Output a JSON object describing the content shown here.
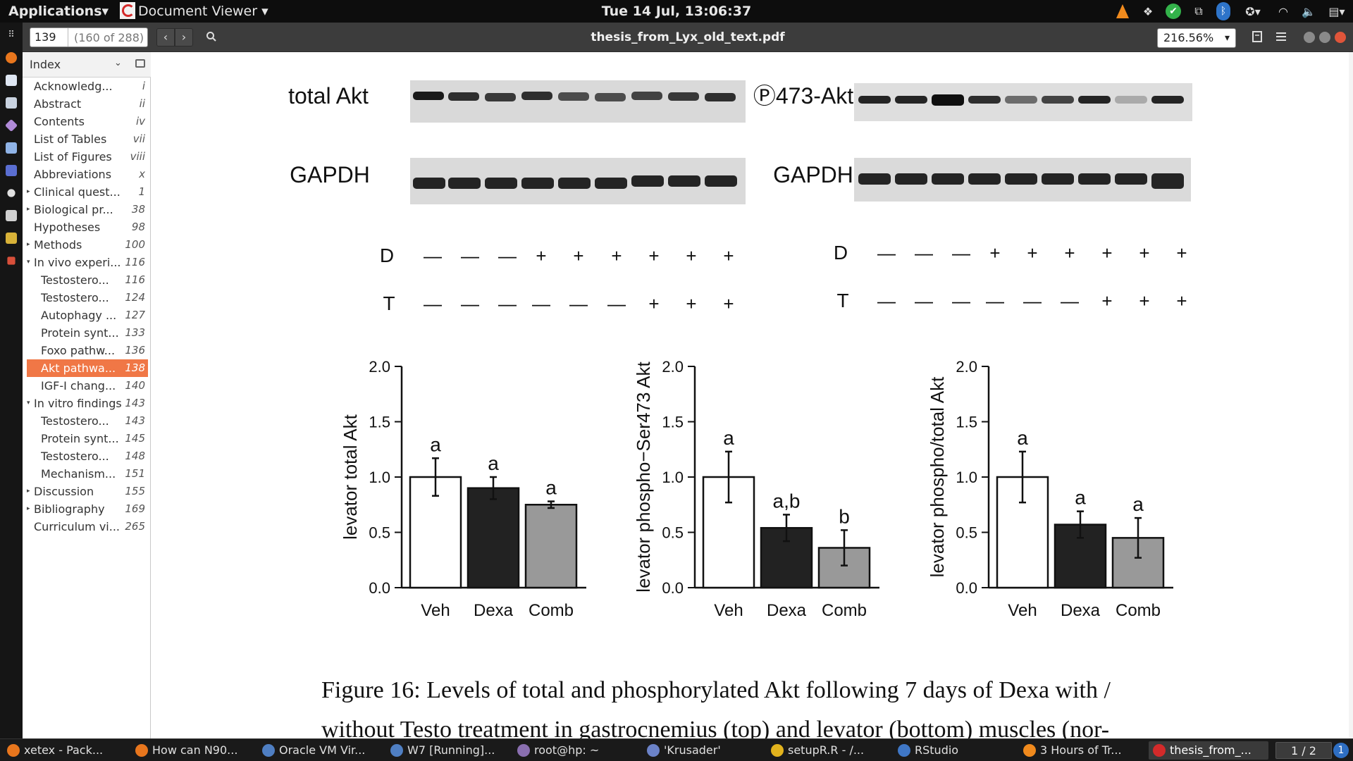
{
  "top_panel": {
    "applications": "Applications▾",
    "app_name": "Document Viewer ▾",
    "clock": "Tue 14 Jul, 13:06:37",
    "tray_icons": [
      "vlc-cone-icon",
      "dropbox-icon",
      "check-icon",
      "network-manager-icon",
      "bluetooth-icon",
      "accessibility-icon",
      "wifi-icon",
      "volume-icon",
      "clipboard-icon"
    ]
  },
  "launcher": {
    "icons": [
      "apps-grid-icon",
      "firefox-icon",
      "document-icon",
      "text-editor-icon",
      "diamond-icon",
      "package-icon",
      "calculator-icon",
      "terminal-icon",
      "text-icon",
      "gimp-icon",
      "tools-icon"
    ]
  },
  "toolbar": {
    "page_number": "139",
    "page_of": "(160 of 288)",
    "title": "thesis_from_Lyx_old_text.pdf",
    "zoom": "216.56%",
    "prev_icon": "‹",
    "next_icon": "›"
  },
  "sidebar": {
    "header": "Index",
    "items": [
      {
        "label": "Acknowledg...",
        "page": "i",
        "level": 1,
        "expander": ""
      },
      {
        "label": "Abstract",
        "page": "ii",
        "level": 1,
        "expander": ""
      },
      {
        "label": "Contents",
        "page": "iv",
        "level": 1,
        "expander": ""
      },
      {
        "label": "List of Tables",
        "page": "vii",
        "level": 1,
        "expander": ""
      },
      {
        "label": "List of Figures",
        "page": "viii",
        "level": 1,
        "expander": ""
      },
      {
        "label": "Abbreviations",
        "page": "x",
        "level": 1,
        "expander": ""
      },
      {
        "label": "Clinical quest...",
        "page": "1",
        "level": 1,
        "expander": "▸"
      },
      {
        "label": "Biological pr...",
        "page": "38",
        "level": 1,
        "expander": "▸"
      },
      {
        "label": "Hypotheses",
        "page": "98",
        "level": 1,
        "expander": ""
      },
      {
        "label": "Methods",
        "page": "100",
        "level": 1,
        "expander": "▸"
      },
      {
        "label": "In vivo experi...",
        "page": "116",
        "level": 1,
        "expander": "▾"
      },
      {
        "label": "Testostero...",
        "page": "116",
        "level": 2,
        "expander": ""
      },
      {
        "label": "Testostero...",
        "page": "124",
        "level": 2,
        "expander": ""
      },
      {
        "label": "Autophagy ...",
        "page": "127",
        "level": 2,
        "expander": ""
      },
      {
        "label": "Protein synt...",
        "page": "133",
        "level": 2,
        "expander": ""
      },
      {
        "label": "Foxo pathw...",
        "page": "136",
        "level": 2,
        "expander": ""
      },
      {
        "label": "Akt pathwa...",
        "page": "138",
        "level": 2,
        "expander": "",
        "selected": true
      },
      {
        "label": "IGF-I chang...",
        "page": "140",
        "level": 2,
        "expander": ""
      },
      {
        "label": "In vitro findings",
        "page": "143",
        "level": 1,
        "expander": "▾"
      },
      {
        "label": "Testostero...",
        "page": "143",
        "level": 2,
        "expander": ""
      },
      {
        "label": "Protein synt...",
        "page": "145",
        "level": 2,
        "expander": ""
      },
      {
        "label": "Testostero...",
        "page": "148",
        "level": 2,
        "expander": ""
      },
      {
        "label": "Mechanism...",
        "page": "151",
        "level": 2,
        "expander": ""
      },
      {
        "label": "Discussion",
        "page": "155",
        "level": 1,
        "expander": "▸"
      },
      {
        "label": "Bibliography",
        "page": "169",
        "level": 1,
        "expander": "▸"
      },
      {
        "label": "Curriculum vi...",
        "page": "265",
        "level": 1,
        "expander": ""
      }
    ]
  },
  "document": {
    "blot_left": {
      "row1": "total Akt",
      "row2": "GAPDH"
    },
    "blot_right": {
      "row1": "Ⓟ473-Akt",
      "row2": "GAPDH"
    },
    "treatment_left": {
      "d_label": "D",
      "t_label": "T",
      "d_signs": [
        "—",
        "—",
        "—",
        "+",
        "+",
        "+",
        "+",
        "+",
        "+"
      ],
      "t_signs": [
        "—",
        "—",
        "—",
        "—",
        "—",
        "—",
        "+",
        "+",
        "+"
      ]
    },
    "treatment_right": {
      "d_label": "D",
      "t_label": "T",
      "d_signs": [
        "—",
        "—",
        "—",
        "+",
        "+",
        "+",
        "+",
        "+",
        "+"
      ],
      "t_signs": [
        "—",
        "—",
        "—",
        "—",
        "—",
        "—",
        "+",
        "+",
        "+"
      ]
    },
    "caption_line1": "Figure 16:  Levels of total and phosphorylated Akt following 7 days of Dexa with /",
    "caption_line2": "without Testo treatment in gastrocnemius (top) and levator (bottom) muscles (nor-"
  },
  "chart_data": [
    {
      "type": "bar",
      "categories": [
        "Veh",
        "Dexa",
        "Comb"
      ],
      "values": [
        1.0,
        0.9,
        0.75
      ],
      "errors": [
        0.17,
        0.1,
        0.03
      ],
      "labels": [
        "a",
        "a",
        "a"
      ],
      "ylabel": "levator total Akt",
      "ylim": [
        0,
        2.0
      ],
      "yticks": [
        "0.0",
        "0.5",
        "1.0",
        "1.5",
        "2.0"
      ],
      "colors": [
        "#ffffff",
        "#222222",
        "#999999"
      ]
    },
    {
      "type": "bar",
      "categories": [
        "Veh",
        "Dexa",
        "Comb"
      ],
      "values": [
        1.0,
        0.54,
        0.36
      ],
      "errors": [
        0.23,
        0.12,
        0.16
      ],
      "labels": [
        "a",
        "a,b",
        "b"
      ],
      "ylabel": "levator phospho−Ser473 Akt",
      "ylim": [
        0,
        2.0
      ],
      "yticks": [
        "0.0",
        "0.5",
        "1.0",
        "1.5",
        "2.0"
      ],
      "colors": [
        "#ffffff",
        "#222222",
        "#999999"
      ]
    },
    {
      "type": "bar",
      "categories": [
        "Veh",
        "Dexa",
        "Comb"
      ],
      "values": [
        1.0,
        0.57,
        0.45
      ],
      "errors": [
        0.23,
        0.12,
        0.18
      ],
      "labels": [
        "a",
        "a",
        "a"
      ],
      "ylabel": "levator phospho/total Akt",
      "ylim": [
        0,
        2.0
      ],
      "yticks": [
        "0.0",
        "0.5",
        "1.0",
        "1.5",
        "2.0"
      ],
      "colors": [
        "#ffffff",
        "#222222",
        "#999999"
      ]
    }
  ],
  "taskbar": {
    "tasks": [
      {
        "label": "xetex - Pack...",
        "icon": "firefox-icon",
        "color": "#e8761d"
      },
      {
        "label": "How can N90...",
        "icon": "firefox-icon",
        "color": "#e8761d"
      },
      {
        "label": "Oracle VM Vir...",
        "icon": "virtualbox-icon",
        "color": "#4f7fc3"
      },
      {
        "label": "W7 [Running]...",
        "icon": "virtualbox-icon",
        "color": "#4f7fc3"
      },
      {
        "label": "root@hp: ~",
        "icon": "terminal-icon",
        "color": "#8a6fb0"
      },
      {
        "label": "'Krusader'",
        "icon": "krusader-icon",
        "color": "#6b82c8"
      },
      {
        "label": "setupR.R - /...",
        "icon": "gedit-icon",
        "color": "#e2b31d"
      },
      {
        "label": "RStudio",
        "icon": "rstudio-icon",
        "color": "#3f77c6"
      },
      {
        "label": "3 Hours of Tr...",
        "icon": "vlc-icon",
        "color": "#f08a1d"
      },
      {
        "label": "thesis_from_...",
        "icon": "document-viewer-icon",
        "color": "#d32a2a",
        "active": true
      }
    ],
    "pager": "1 / 2",
    "notification": "1"
  }
}
